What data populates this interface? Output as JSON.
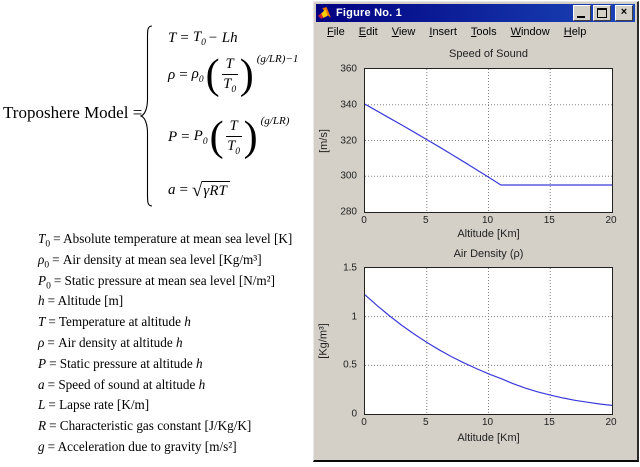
{
  "left_panel": {
    "model_label": "Troposhere Model =",
    "equations": {
      "temperature": {
        "lhs": "T",
        "eq": "=",
        "base": "T",
        "sub": "0",
        "rest": "− Lh"
      },
      "density": {
        "lhs": "ρ",
        "eq": "=",
        "coef": "ρ",
        "coef_sub": "0",
        "num": "T",
        "den": "T",
        "den_sub": "0",
        "exp": "(g/LR)−1"
      },
      "pressure": {
        "lhs": "P",
        "eq": "=",
        "coef": "P",
        "coef_sub": "0",
        "num": "T",
        "den": "T",
        "den_sub": "0",
        "exp": "(g/LR)"
      },
      "sound": {
        "lhs": "a",
        "eq": "=",
        "radical": "√",
        "radicand": "γRT"
      }
    },
    "definitions": [
      {
        "sym": "T",
        "sub": "0",
        "desc": "= Absolute temperature at mean sea level [K]",
        "tail": ""
      },
      {
        "sym": "ρ",
        "sub": "0",
        "desc": "= Air density at mean sea level [Kg/m³]",
        "tail": ""
      },
      {
        "sym": "P",
        "sub": "0",
        "desc": "= Static pressure at mean sea level [N/m²]",
        "tail": ""
      },
      {
        "sym": "h",
        "sub": "",
        "desc": "= Altitude [m]",
        "tail": ""
      },
      {
        "sym": "T",
        "sub": "",
        "desc": "= Temperature at altitude",
        "tail": "h"
      },
      {
        "sym": "ρ",
        "sub": "",
        "desc": "= Air density at altitude",
        "tail": "h"
      },
      {
        "sym": "P",
        "sub": "",
        "desc": "= Static pressure at altitude",
        "tail": "h"
      },
      {
        "sym": "a",
        "sub": "",
        "desc": "= Speed of sound at altitude",
        "tail": "h"
      },
      {
        "sym": "L",
        "sub": "",
        "desc": "= Lapse rate [K/m]",
        "tail": ""
      },
      {
        "sym": "R",
        "sub": "",
        "desc": "= Characteristic gas constant [J/Kg/K]",
        "tail": ""
      },
      {
        "sym": "g",
        "sub": "",
        "desc": "= Acceleration due to gravity [m/s²]",
        "tail": ""
      }
    ]
  },
  "figure_window": {
    "title": "Figure No. 1",
    "close_glyph": "×",
    "icons": [
      "matlab-logo-icon",
      "minimize-icon",
      "maximize-icon",
      "close-icon"
    ],
    "menu_items": [
      {
        "u": "F",
        "rest": "ile"
      },
      {
        "u": "E",
        "rest": "dit"
      },
      {
        "u": "V",
        "rest": "iew"
      },
      {
        "u": "I",
        "rest": "nsert"
      },
      {
        "u": "T",
        "rest": "ools"
      },
      {
        "u": "W",
        "rest": "indow"
      },
      {
        "u": "H",
        "rest": "elp"
      }
    ]
  },
  "colors": {
    "titlebar_left": "#000080",
    "titlebar_right": "#1c47b8",
    "window_chrome": "#d4d0c8",
    "plot_line_blue": "#3b3bd9",
    "plot_bg": "#ffffff"
  },
  "chart_data": [
    {
      "type": "line",
      "title": "Speed of Sound",
      "xlabel": "Altitude [Km]",
      "ylabel": "[m/s]",
      "xlim": [
        0,
        20
      ],
      "ylim": [
        280,
        360
      ],
      "x_ticks": [
        0,
        5,
        10,
        15,
        20
      ],
      "y_ticks": [
        280,
        300,
        320,
        340,
        360
      ],
      "grid": true,
      "legend": "none",
      "line_color": "#3b3bd9",
      "x": [
        0,
        1,
        2,
        3,
        4,
        5,
        6,
        7,
        8,
        9,
        10,
        11,
        12,
        13,
        14,
        15,
        16,
        17,
        18,
        19,
        20
      ],
      "y": [
        340.3,
        336.4,
        332.5,
        328.6,
        324.6,
        320.5,
        316.5,
        312.3,
        308.1,
        303.8,
        299.5,
        295.1,
        295.1,
        295.1,
        295.1,
        295.1,
        295.1,
        295.1,
        295.1,
        295.1,
        295.1
      ]
    },
    {
      "type": "line",
      "title": "Air Density (ρ)",
      "xlabel": "Altitude [Km]",
      "ylabel": "[Kg/m³]",
      "xlim": [
        0,
        20
      ],
      "ylim": [
        0,
        1.5
      ],
      "x_ticks": [
        0,
        5,
        10,
        15,
        20
      ],
      "y_ticks": [
        0,
        0.5,
        1,
        1.5
      ],
      "grid": true,
      "legend": "none",
      "line_color": "#3b3bd9",
      "x": [
        0,
        1,
        2,
        3,
        4,
        5,
        6,
        7,
        8,
        9,
        10,
        11,
        12,
        13,
        14,
        15,
        16,
        17,
        18,
        19,
        20
      ],
      "y": [
        1.225,
        1.112,
        1.007,
        0.909,
        0.819,
        0.736,
        0.66,
        0.59,
        0.526,
        0.467,
        0.413,
        0.364,
        0.311,
        0.265,
        0.227,
        0.194,
        0.165,
        0.141,
        0.121,
        0.103,
        0.088
      ]
    }
  ]
}
